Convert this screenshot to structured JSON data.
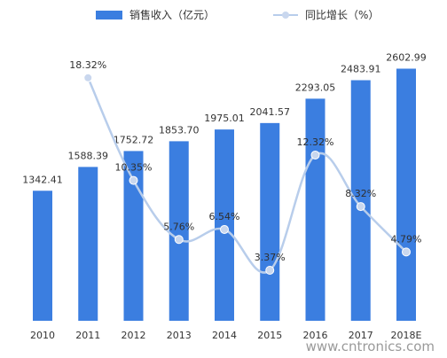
{
  "watermark": "www.cntronics.com",
  "colors": {
    "bar": "#3B7EE0",
    "line": "#B8CDEB",
    "marker": "#C9D7EE",
    "text": "#333333",
    "growth_label": "#2F2F2F"
  },
  "chart_data": {
    "type": "bar",
    "categories": [
      "2010",
      "2011",
      "2012",
      "2013",
      "2014",
      "2015",
      "2016",
      "2017",
      "2018E"
    ],
    "series": [
      {
        "name": "销售收入（亿元）",
        "type": "bar",
        "values": [
          1342.41,
          1588.39,
          1752.72,
          1853.7,
          1975.01,
          2041.57,
          2293.05,
          2483.91,
          2602.99
        ],
        "labels": [
          "1342.41",
          "1588.39",
          "1752.72",
          "1853.70",
          "1975.01",
          "2041.57",
          "2293.05",
          "2483.91",
          "2602.99"
        ]
      },
      {
        "name": "同比增长（%）",
        "type": "line",
        "x": [
          "2011",
          "2012",
          "2013",
          "2014",
          "2015",
          "2016",
          "2017",
          "2018E"
        ],
        "values": [
          18.32,
          10.35,
          5.76,
          6.54,
          3.37,
          12.32,
          8.32,
          4.79
        ],
        "labels": [
          "18.32%",
          "10.35%",
          "5.76%",
          "6.54%",
          "3.37%",
          "12.32%",
          "8.32%",
          "4.79%"
        ]
      }
    ],
    "legend_position": "top",
    "grid": false
  }
}
